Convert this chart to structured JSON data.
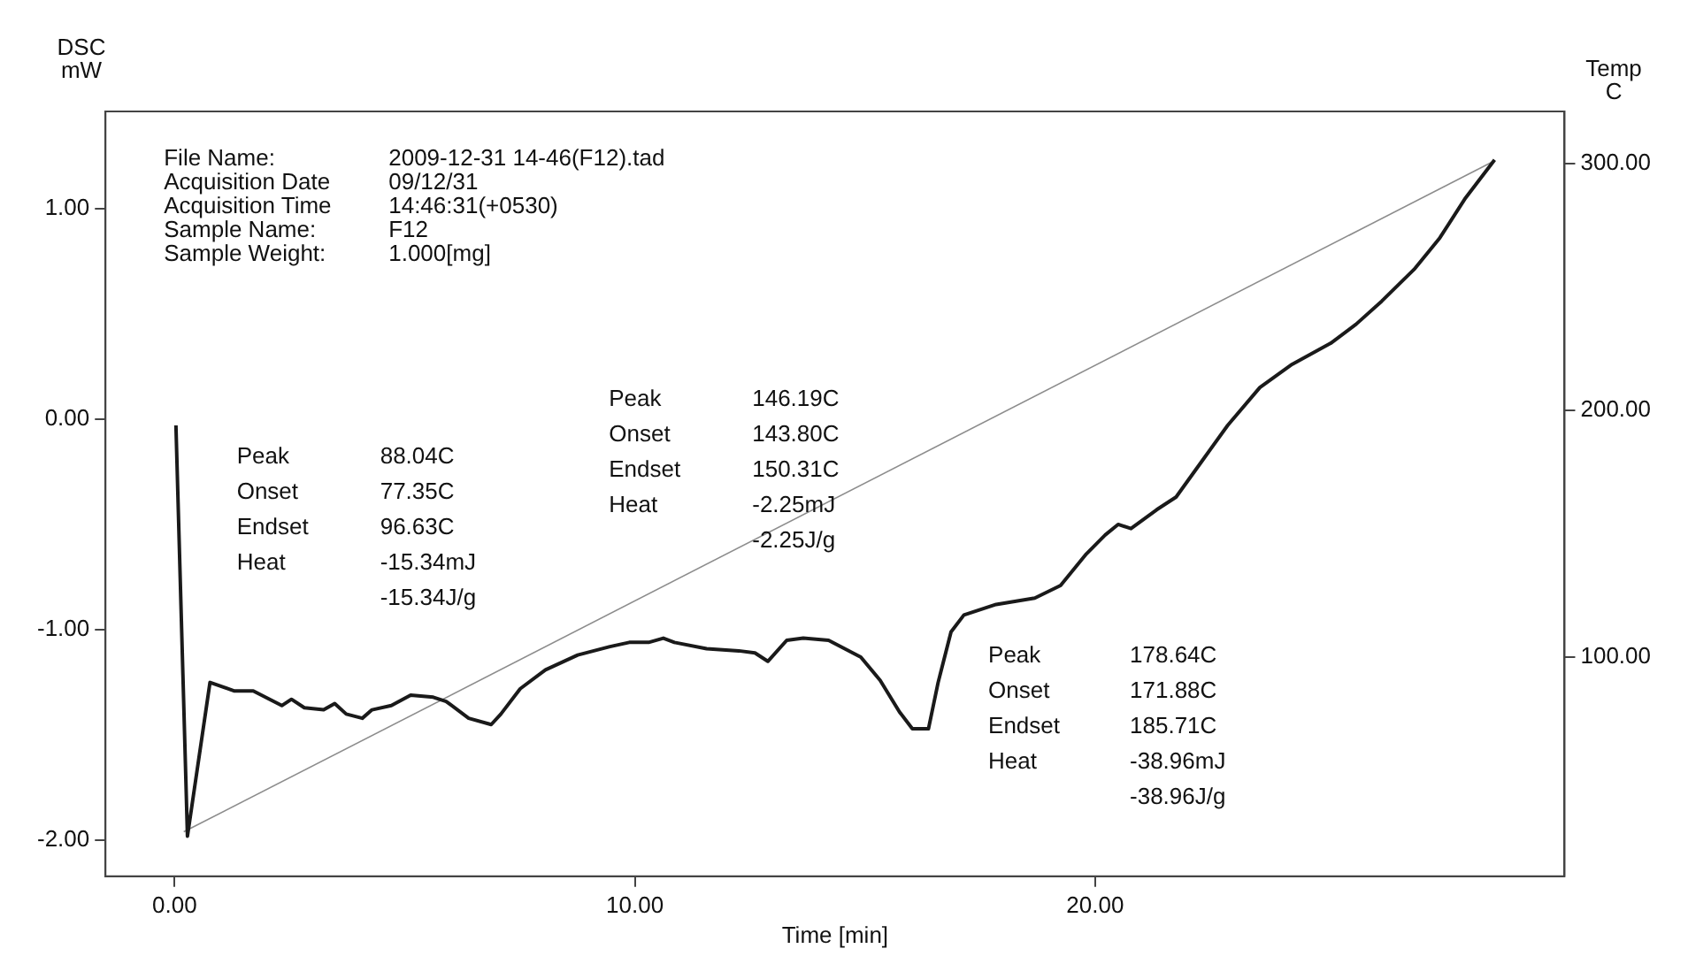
{
  "chart_data": {
    "type": "line",
    "xlabel": "Time [min]",
    "ylabel": "DSC\nmW",
    "y2label": "Temp\nC",
    "x": [
      0.03,
      0.28,
      0.77,
      1.29,
      1.71,
      2.33,
      2.54,
      2.82,
      3.24,
      3.48,
      3.73,
      4.08,
      4.29,
      4.71,
      5.13,
      5.62,
      5.9,
      6.39,
      6.88,
      7.09,
      7.51,
      8.06,
      8.76,
      9.46,
      9.88,
      10.3,
      10.62,
      10.86,
      11.56,
      12.26,
      12.61,
      12.89,
      13.3,
      13.66,
      14.21,
      14.91,
      15.33,
      15.75,
      16.03,
      16.38,
      16.59,
      16.87,
      17.15,
      17.85,
      18.69,
      19.25,
      19.81,
      20.22,
      20.5,
      20.78,
      21.34,
      21.76,
      22.32,
      22.88,
      23.58,
      24.28,
      25.12,
      25.67,
      26.23,
      26.93,
      27.49,
      28.05,
      28.68
    ],
    "series": [
      {
        "color": "#1a1a1a",
        "axis": "y",
        "values": [
          -0.03,
          -1.98,
          -1.25,
          -1.29,
          -1.29,
          -1.36,
          -1.33,
          -1.37,
          -1.38,
          -1.35,
          -1.4,
          -1.42,
          -1.38,
          -1.36,
          -1.31,
          -1.32,
          -1.34,
          -1.42,
          -1.45,
          -1.4,
          -1.28,
          -1.19,
          -1.12,
          -1.08,
          -1.06,
          -1.06,
          -1.04,
          -1.06,
          -1.09,
          -1.1,
          -1.11,
          -1.15,
          -1.05,
          -1.04,
          -1.05,
          -1.13,
          -1.24,
          -1.39,
          -1.47,
          -1.47,
          -1.25,
          -1.01,
          -0.93,
          -0.88,
          -0.85,
          -0.79,
          -0.64,
          -0.55,
          -0.5,
          -0.52,
          -0.43,
          -0.37,
          -0.2,
          -0.03,
          0.15,
          0.26,
          0.36,
          0.45,
          0.56,
          0.71,
          0.86,
          1.05,
          1.23
        ]
      },
      {
        "color": "#8c8c8c",
        "axis": "y2",
        "x": [
          0.2,
          28.68
        ],
        "values": [
          29,
          301
        ]
      }
    ],
    "xlim": [
      -1.5,
      30.2
    ],
    "xticks": [
      {
        "value": 0,
        "label": "0.00"
      },
      {
        "value": 10,
        "label": "10.00"
      },
      {
        "value": 20,
        "label": "20.00"
      }
    ],
    "ylim": [
      -2.17,
      1.46
    ],
    "yticks": [
      {
        "value": -2,
        "label": "-2.00"
      },
      {
        "value": -1,
        "label": "-1.00"
      },
      {
        "value": 0,
        "label": "0.00"
      },
      {
        "value": 1,
        "label": "1.00"
      }
    ],
    "y2lim": [
      11,
      321
    ],
    "y2ticks": [
      {
        "value": 100,
        "label": "100.00"
      },
      {
        "value": 200,
        "label": "200.00"
      },
      {
        "value": 300,
        "label": "300.00"
      }
    ],
    "grid": false,
    "legend": false,
    "marker": "none",
    "line_style": "solid",
    "annotations": [
      "File Name:\t2009-12-31 14-46(F12).tad\nAcquisition Date\t09/12/31\nAcquisition Time\t14:46:31(+0530)\nSample Name:\tF12\nSample Weight:\t1.000[mg]",
      "Peak\t88.04C\nOnset\t77.35C\nEndset\t96.63C\nHeat\t-15.34mJ\n\t-15.34J/g",
      "Peak\t146.19C\nOnset\t143.80C\nEndset\t150.31C\nHeat\t-2.25mJ\n\t-2.25J/g",
      "Peak\t178.64C\nOnset\t171.88C\nEndset\t185.71C\nHeat\t-38.96mJ\n\t-38.96J/g"
    ]
  }
}
